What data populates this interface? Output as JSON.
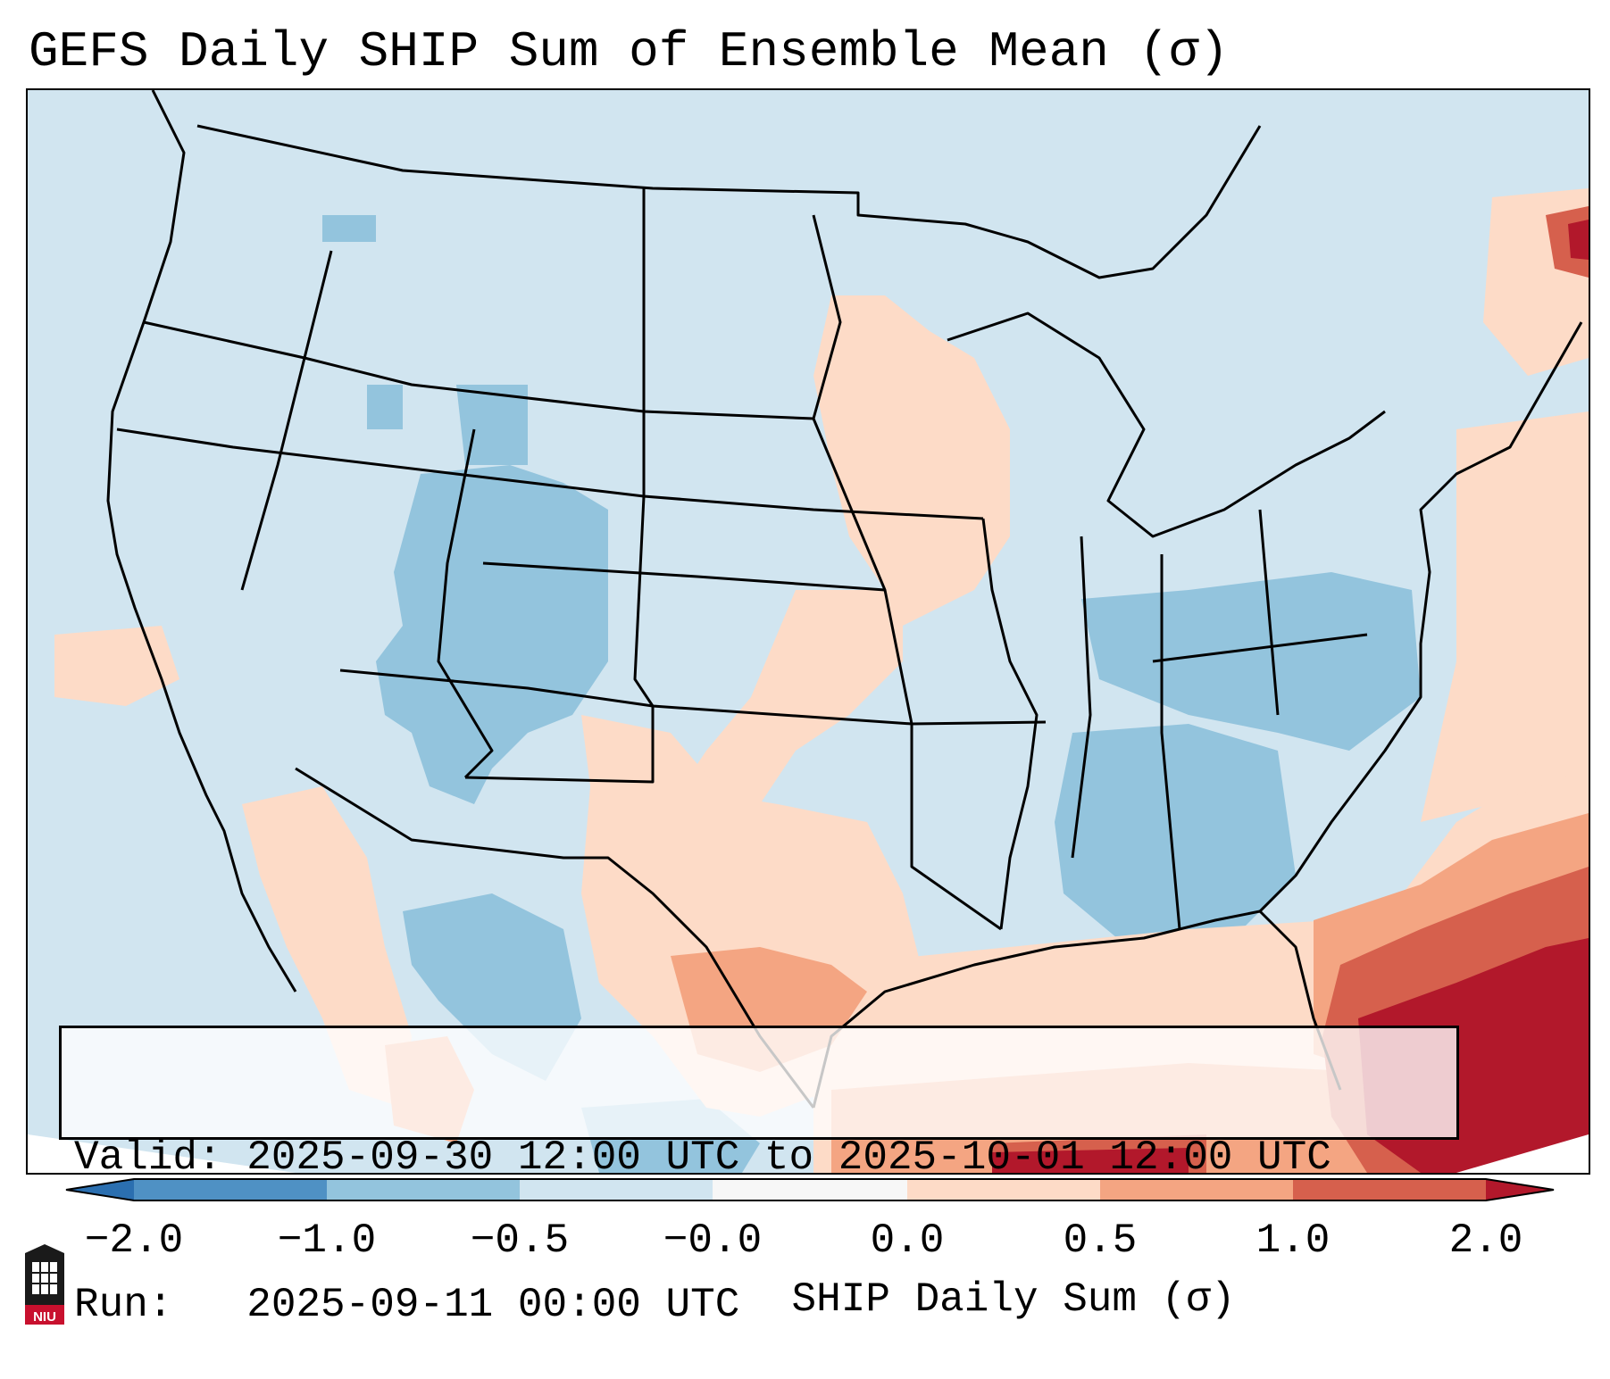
{
  "title": "GEFS Daily SHIP Sum of Ensemble Mean (σ)",
  "info": {
    "valid": "Valid: 2025-09-30 12:00 UTC to 2025-10-01 12:00 UTC",
    "run": "Run:   2025-09-11 00:00 UTC"
  },
  "colorbar": {
    "label": "SHIP Daily Sum (σ)",
    "tick_labels": [
      "−2.0",
      "−1.0",
      "−0.5",
      "−0.0",
      "0.0",
      "0.5",
      "1.0",
      "2.0"
    ],
    "bins": [
      {
        "range": "< -2.0",
        "color": "#2b6fb0"
      },
      {
        "range": "-2.0 to -1.0",
        "color": "#4f91c4"
      },
      {
        "range": "-1.0 to -0.5",
        "color": "#93c4dd"
      },
      {
        "range": "-0.5 to -0.0",
        "color": "#d1e5f0"
      },
      {
        "range": "-0.0 to 0.0",
        "color": "#f7f7f7"
      },
      {
        "range": "0.0 to 0.5",
        "color": "#fddbc7"
      },
      {
        "range": "0.5 to 1.0",
        "color": "#f4a582"
      },
      {
        "range": "1.0 to 2.0",
        "color": "#d6604d"
      },
      {
        "range": "> 2.0",
        "color": "#b2182b"
      }
    ]
  },
  "logo": {
    "icon": "niu-logo-icon",
    "text": "NIU"
  },
  "colors": {
    "ocean_fill": "#cfe3ef",
    "border": "#000000"
  }
}
